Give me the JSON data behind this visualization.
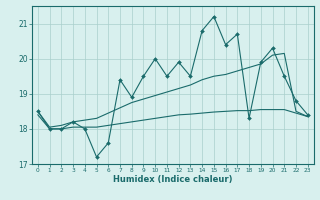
{
  "xlabel": "Humidex (Indice chaleur)",
  "x_values": [
    0,
    1,
    2,
    3,
    4,
    5,
    6,
    7,
    8,
    9,
    10,
    11,
    12,
    13,
    14,
    15,
    16,
    17,
    18,
    19,
    20,
    21,
    22,
    23
  ],
  "line1_y": [
    18.5,
    18.0,
    18.0,
    18.2,
    18.0,
    17.2,
    17.6,
    19.4,
    18.9,
    19.5,
    20.0,
    19.5,
    19.9,
    19.5,
    20.8,
    21.2,
    20.4,
    20.7,
    18.3,
    19.9,
    20.3,
    19.5,
    18.8,
    18.4
  ],
  "line2_y": [
    18.5,
    18.05,
    18.1,
    18.2,
    18.25,
    18.3,
    18.45,
    18.6,
    18.75,
    18.85,
    18.95,
    19.05,
    19.15,
    19.25,
    19.4,
    19.5,
    19.55,
    19.65,
    19.75,
    19.85,
    20.1,
    20.15,
    18.5,
    18.35
  ],
  "line3_y": [
    18.4,
    18.0,
    18.0,
    18.05,
    18.05,
    18.05,
    18.1,
    18.15,
    18.2,
    18.25,
    18.3,
    18.35,
    18.4,
    18.42,
    18.45,
    18.48,
    18.5,
    18.52,
    18.52,
    18.55,
    18.55,
    18.55,
    18.45,
    18.35
  ],
  "ylim": [
    17.0,
    21.5
  ],
  "yticks": [
    17,
    18,
    19,
    20,
    21
  ],
  "xticks": [
    0,
    1,
    2,
    3,
    4,
    5,
    6,
    7,
    8,
    9,
    10,
    11,
    12,
    13,
    14,
    15,
    16,
    17,
    18,
    19,
    20,
    21,
    22,
    23
  ],
  "line_color": "#1a6b6b",
  "bg_color": "#d8f0ee",
  "grid_color": "#aacfcc"
}
